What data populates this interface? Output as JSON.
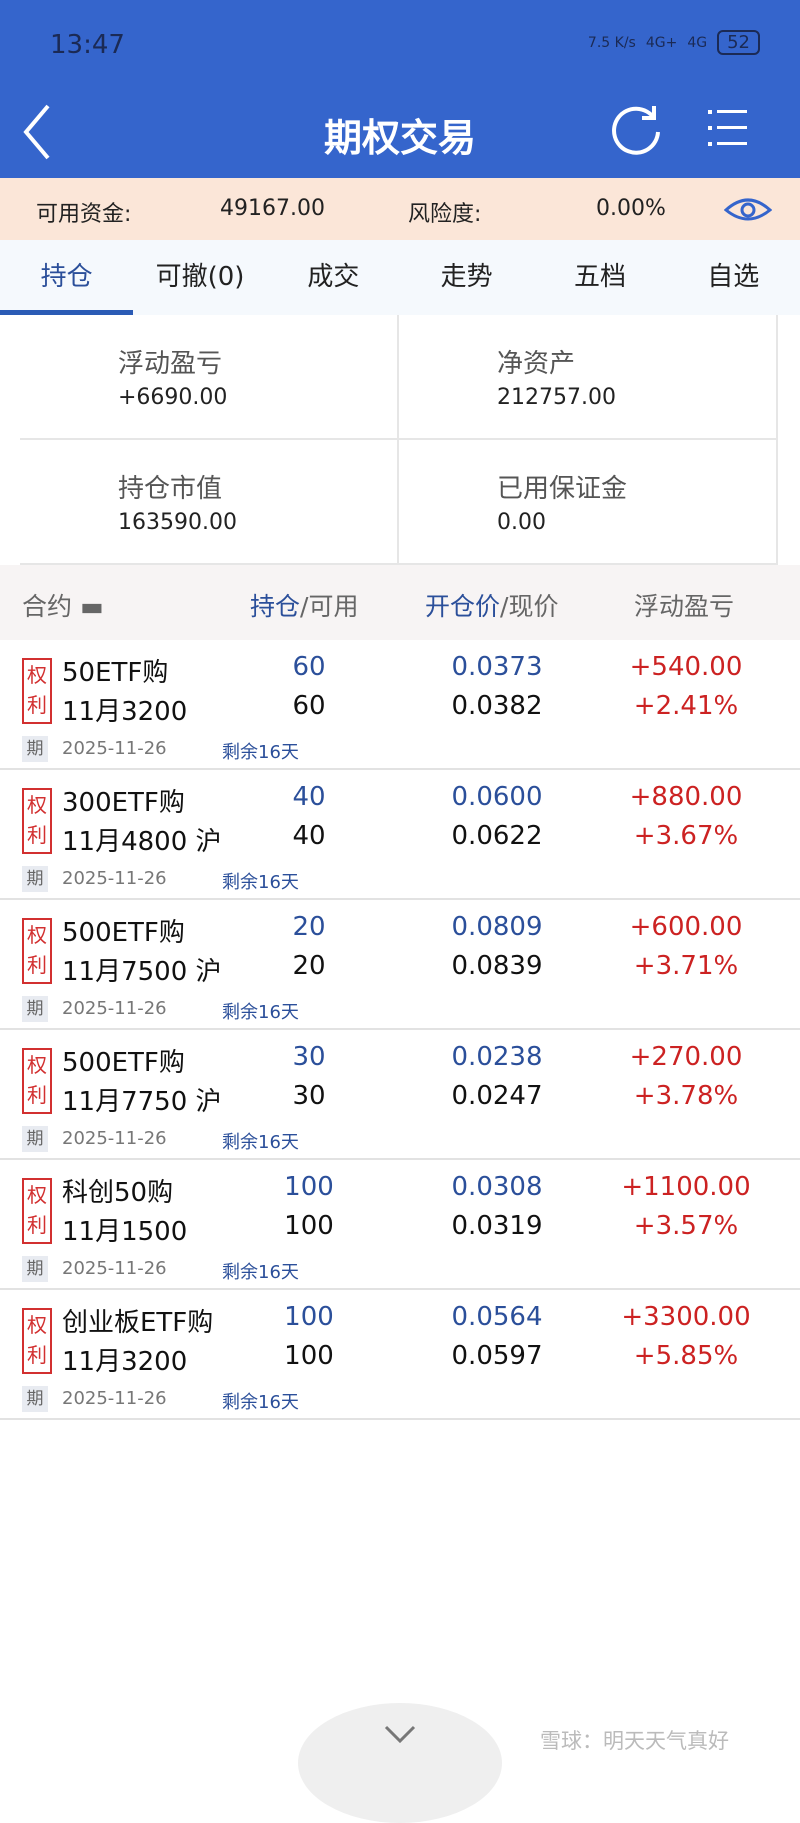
{
  "status_bar": {
    "time": "13:47",
    "speed": "7.5 K/s",
    "net1": "4G+",
    "net2": "4G",
    "battery": "52"
  },
  "header": {
    "title": "期权交易"
  },
  "info": {
    "funds_label": "可用资金:",
    "funds_value": "49167.00",
    "risk_label": "风险度:",
    "risk_value": "0.00%"
  },
  "tabs": [
    {
      "label": "持仓"
    },
    {
      "label": "可撤(0)"
    },
    {
      "label": "成交"
    },
    {
      "label": "走势"
    },
    {
      "label": "五档"
    },
    {
      "label": "自选"
    }
  ],
  "summary": [
    {
      "label": "浮动盈亏",
      "value": "+6690.00"
    },
    {
      "label": "净资产",
      "value": "212757.00"
    },
    {
      "label": "持仓市值",
      "value": "163590.00"
    },
    {
      "label": "已用保证金",
      "value": "0.00"
    }
  ],
  "columns": {
    "contract": "合约",
    "pos": "持仓",
    "avail": "/可用",
    "open": "开仓价",
    "cur": "/现价",
    "pnl": "浮动盈亏"
  },
  "badge": {
    "line1": "权",
    "line2": "利",
    "expiry_tag": "期"
  },
  "positions": [
    {
      "name": "50ETF购",
      "sub": "11月3200",
      "pos": "60",
      "avail": "60",
      "open": "0.0373",
      "cur": "0.0382",
      "pnl": "+540.00",
      "pct": "+2.41%",
      "date": "2025-11-26",
      "remain": "剩余16天"
    },
    {
      "name": "300ETF购",
      "sub": "11月4800 沪",
      "pos": "40",
      "avail": "40",
      "open": "0.0600",
      "cur": "0.0622",
      "pnl": "+880.00",
      "pct": "+3.67%",
      "date": "2025-11-26",
      "remain": "剩余16天"
    },
    {
      "name": "500ETF购",
      "sub": "11月7500 沪",
      "pos": "20",
      "avail": "20",
      "open": "0.0809",
      "cur": "0.0839",
      "pnl": "+600.00",
      "pct": "+3.71%",
      "date": "2025-11-26",
      "remain": "剩余16天"
    },
    {
      "name": "500ETF购",
      "sub": "11月7750 沪",
      "pos": "30",
      "avail": "30",
      "open": "0.0238",
      "cur": "0.0247",
      "pnl": "+270.00",
      "pct": "+3.78%",
      "date": "2025-11-26",
      "remain": "剩余16天"
    },
    {
      "name": "科创50购",
      "sub": "11月1500",
      "pos": "100",
      "avail": "100",
      "open": "0.0308",
      "cur": "0.0319",
      "pnl": "+1100.00",
      "pct": "+3.57%",
      "date": "2025-11-26",
      "remain": "剩余16天"
    },
    {
      "name": "创业板ETF购",
      "sub": "11月3200",
      "pos": "100",
      "avail": "100",
      "open": "0.0564",
      "cur": "0.0597",
      "pnl": "+3300.00",
      "pct": "+5.85%",
      "date": "2025-11-26",
      "remain": "剩余16天"
    }
  ],
  "watermark": "雪球：明天天气真好",
  "colors": {
    "header": "#3565cc",
    "profit": "#cc2222",
    "accent": "#2b4f9a"
  }
}
